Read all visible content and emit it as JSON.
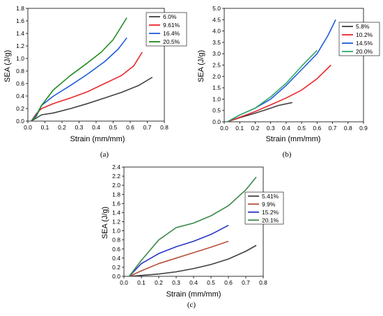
{
  "chart_data": [
    {
      "type": "line",
      "caption": "(a)",
      "xlabel": "Strain (mm/mm)",
      "ylabel": "SEA (J/g)",
      "xlim": [
        0.0,
        0.8
      ],
      "ylim": [
        0.0,
        1.8
      ],
      "xticks": [
        "0.0",
        "0.1",
        "0.2",
        "0.3",
        "0.4",
        "0.5",
        "0.6",
        "0.7",
        "0.8"
      ],
      "yticks": [
        "0.0",
        "0.2",
        "0.4",
        "0.6",
        "0.8",
        "1.0",
        "1.2",
        "1.4",
        "1.6",
        "1.8"
      ],
      "legend": "top-right",
      "series": [
        {
          "name": "6.0%",
          "color": "#404040",
          "x": [
            0.02,
            0.05,
            0.08,
            0.15,
            0.25,
            0.35,
            0.45,
            0.55,
            0.65,
            0.73
          ],
          "y": [
            0.0,
            0.05,
            0.1,
            0.13,
            0.2,
            0.28,
            0.37,
            0.46,
            0.57,
            0.7
          ]
        },
        {
          "name": "9.61%",
          "color": "#e8262b",
          "x": [
            0.02,
            0.05,
            0.08,
            0.15,
            0.25,
            0.35,
            0.45,
            0.55,
            0.62,
            0.67
          ],
          "y": [
            0.0,
            0.12,
            0.2,
            0.28,
            0.37,
            0.47,
            0.6,
            0.73,
            0.88,
            1.1
          ]
        },
        {
          "name": "16.4%",
          "color": "#1f5bd9",
          "x": [
            0.02,
            0.05,
            0.08,
            0.15,
            0.25,
            0.35,
            0.45,
            0.53,
            0.58
          ],
          "y": [
            0.0,
            0.1,
            0.25,
            0.4,
            0.57,
            0.75,
            0.95,
            1.15,
            1.33
          ]
        },
        {
          "name": "20.5%",
          "color": "#1f8a1f",
          "x": [
            0.02,
            0.05,
            0.08,
            0.15,
            0.25,
            0.35,
            0.43,
            0.5,
            0.58
          ],
          "y": [
            0.0,
            0.08,
            0.25,
            0.5,
            0.73,
            0.93,
            1.1,
            1.3,
            1.65
          ]
        }
      ]
    },
    {
      "type": "line",
      "caption": "(b)",
      "xlabel": "Strain (mm/mm)",
      "ylabel": "SEA (J/g)",
      "xlim": [
        0.0,
        0.9
      ],
      "ylim": [
        0.0,
        5.0
      ],
      "xticks": [
        "0.0",
        "0.1",
        "0.2",
        "0.3",
        "0.4",
        "0.5",
        "0.6",
        "0.7",
        "0.8",
        "0.9"
      ],
      "yticks": [
        "0.0",
        "0.5",
        "1.0",
        "1.5",
        "2.0",
        "2.5",
        "3.0",
        "3.5",
        "4.0",
        "4.5",
        "5.0"
      ],
      "legend": "top-right",
      "series": [
        {
          "name": "5.8%",
          "color": "#404040",
          "x": [
            0.02,
            0.1,
            0.2,
            0.3,
            0.35,
            0.44
          ],
          "y": [
            0.0,
            0.18,
            0.38,
            0.6,
            0.72,
            0.85
          ]
        },
        {
          "name": "10.2%",
          "color": "#e8262b",
          "x": [
            0.02,
            0.1,
            0.2,
            0.3,
            0.4,
            0.5,
            0.6,
            0.69
          ],
          "y": [
            0.0,
            0.2,
            0.45,
            0.75,
            1.05,
            1.4,
            1.9,
            2.5
          ]
        },
        {
          "name": "14.5%",
          "color": "#1f5bd9",
          "x": [
            0.02,
            0.1,
            0.2,
            0.3,
            0.4,
            0.5,
            0.6,
            0.67,
            0.72
          ],
          "y": [
            0.0,
            0.3,
            0.6,
            1.0,
            1.6,
            2.3,
            3.0,
            3.8,
            4.5
          ]
        },
        {
          "name": "20.0%",
          "color": "#2fa86a",
          "x": [
            0.02,
            0.1,
            0.2,
            0.3,
            0.4,
            0.5,
            0.6
          ],
          "y": [
            0.0,
            0.3,
            0.6,
            1.1,
            1.7,
            2.45,
            3.15
          ]
        }
      ]
    },
    {
      "type": "line",
      "caption": "(c)",
      "xlabel": "Strain (mm/mm)",
      "ylabel": "SEA (J/g)",
      "xlim": [
        0.0,
        0.8
      ],
      "ylim": [
        0.0,
        2.4
      ],
      "xticks": [
        "0.0",
        "0.1",
        "0.2",
        "0.3",
        "0.4",
        "0.5",
        "0.6",
        "0.7",
        "0.8"
      ],
      "yticks": [
        "0.0",
        "0.2",
        "0.4",
        "0.6",
        "0.8",
        "1.0",
        "1.2",
        "1.4",
        "1.6",
        "1.8",
        "2.0",
        "2.2",
        "2.4"
      ],
      "legend": "top-right",
      "series": [
        {
          "name": "5.41%",
          "color": "#404040",
          "x": [
            0.03,
            0.1,
            0.2,
            0.3,
            0.4,
            0.5,
            0.6,
            0.7,
            0.76
          ],
          "y": [
            0.0,
            0.02,
            0.05,
            0.1,
            0.17,
            0.26,
            0.38,
            0.55,
            0.68
          ]
        },
        {
          "name": "9.9%",
          "color": "#b5503a",
          "x": [
            0.03,
            0.1,
            0.2,
            0.3,
            0.4,
            0.5,
            0.6
          ],
          "y": [
            0.0,
            0.12,
            0.28,
            0.4,
            0.52,
            0.64,
            0.77
          ]
        },
        {
          "name": "15.2%",
          "color": "#2536c6",
          "x": [
            0.03,
            0.1,
            0.2,
            0.3,
            0.4,
            0.5,
            0.6
          ],
          "y": [
            0.0,
            0.28,
            0.5,
            0.65,
            0.77,
            0.92,
            1.12
          ]
        },
        {
          "name": "20.1%",
          "color": "#3a8a4a",
          "x": [
            0.03,
            0.1,
            0.2,
            0.3,
            0.4,
            0.5,
            0.6,
            0.7,
            0.76
          ],
          "y": [
            0.0,
            0.35,
            0.8,
            1.07,
            1.17,
            1.33,
            1.55,
            1.9,
            2.18
          ]
        }
      ]
    }
  ]
}
